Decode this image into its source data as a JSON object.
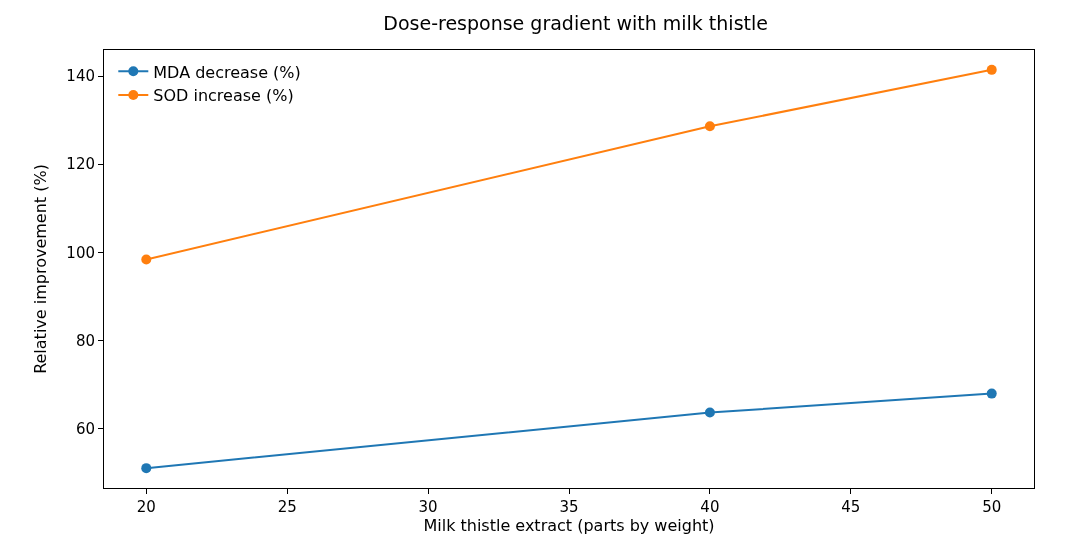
{
  "chart_data": {
    "type": "line",
    "title": "Dose-response gradient with milk thistle",
    "xlabel": "Milk thistle extract (parts by weight)",
    "ylabel": "Relative improvement (%)",
    "x": [
      20,
      40,
      50
    ],
    "series": [
      {
        "name": "MDA decrease (%)",
        "color": "#1f77b4",
        "values": [
          51.1,
          63.7,
          68.0
        ]
      },
      {
        "name": "SOD increase (%)",
        "color": "#ff7f0e",
        "values": [
          98.4,
          128.6,
          141.4
        ]
      }
    ],
    "xlim": [
      18.5,
      51.5
    ],
    "xticks": [
      20,
      25,
      30,
      35,
      40,
      45,
      50
    ],
    "ylim": [
      46.6,
      145.9
    ],
    "yticks": [
      60,
      80,
      100,
      120,
      140
    ],
    "grid": false,
    "legend": "top left",
    "marker": "circle",
    "line_style": "solid"
  }
}
